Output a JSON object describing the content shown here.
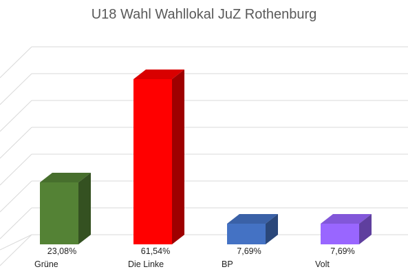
{
  "chart_data": {
    "type": "bar",
    "title": "U18 Wahl Wahllokal JuZ Rothenburg",
    "categories": [
      "Grüne",
      "Die Linke",
      "BP",
      "Volt"
    ],
    "values": [
      23.08,
      61.54,
      7.69,
      7.69
    ],
    "value_labels": [
      "23,08%",
      "61,54%",
      "7,69%",
      "7,69%"
    ],
    "unit": "%",
    "colors": [
      "#548235",
      "#ff0000",
      "#4472c4",
      "#9966ff"
    ],
    "ylim": [
      0,
      70
    ],
    "grid": true,
    "legend": "none",
    "style": "3d-column"
  }
}
